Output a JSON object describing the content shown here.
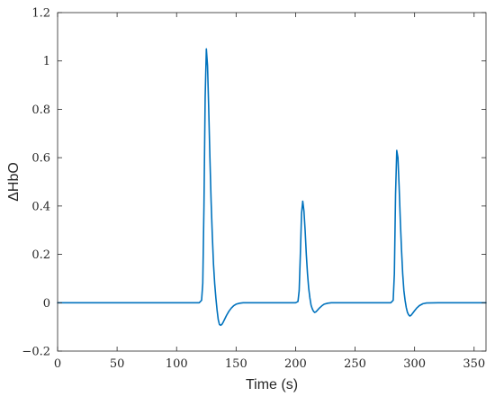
{
  "chart_data": {
    "type": "line",
    "title": "",
    "xlabel": "Time (s)",
    "ylabel": "ΔHbO",
    "xlim": [
      0,
      360
    ],
    "ylim": [
      -0.2,
      1.2
    ],
    "x_ticks": [
      0,
      50,
      100,
      150,
      200,
      250,
      300,
      350
    ],
    "x_tick_labels": [
      "0",
      "50",
      "100",
      "150",
      "200",
      "250",
      "300",
      "350"
    ],
    "y_ticks": [
      -0.2,
      0,
      0.2,
      0.4,
      0.6,
      0.8,
      1,
      1.2
    ],
    "y_tick_labels": [
      "−0.2",
      "0",
      "0.2",
      "0.4",
      "0.6",
      "0.8",
      "1",
      "1.2"
    ],
    "grid": false,
    "box": true,
    "series": [
      {
        "color": "#0072BD",
        "x": [
          0,
          100,
          119,
          121,
          122,
          123,
          124,
          125,
          126,
          127,
          128,
          129,
          130,
          131,
          132,
          133,
          134,
          135,
          136,
          137,
          138,
          139,
          140,
          142,
          144,
          146,
          148,
          150,
          153,
          156,
          160,
          200,
          202,
          203,
          204,
          205,
          206,
          207,
          208,
          209,
          210,
          211,
          212,
          213,
          214,
          215,
          216,
          217,
          218,
          220,
          222,
          224,
          227,
          230,
          240,
          280,
          282,
          283,
          284,
          285,
          286,
          287,
          288,
          289,
          290,
          291,
          292,
          293,
          294,
          295,
          296,
          297,
          298,
          300,
          302,
          304,
          307,
          310,
          320,
          360
        ],
        "y": [
          0,
          0,
          0,
          0.01,
          0.08,
          0.4,
          0.85,
          1.05,
          0.98,
          0.8,
          0.6,
          0.42,
          0.28,
          0.16,
          0.08,
          0.02,
          -0.03,
          -0.07,
          -0.09,
          -0.093,
          -0.09,
          -0.082,
          -0.072,
          -0.052,
          -0.035,
          -0.022,
          -0.012,
          -0.006,
          -0.002,
          0,
          0,
          0,
          0.005,
          0.05,
          0.2,
          0.37,
          0.42,
          0.38,
          0.3,
          0.2,
          0.12,
          0.06,
          0.02,
          -0.01,
          -0.025,
          -0.035,
          -0.04,
          -0.038,
          -0.033,
          -0.022,
          -0.013,
          -0.006,
          -0.002,
          0,
          0,
          0,
          0.01,
          0.12,
          0.45,
          0.63,
          0.6,
          0.48,
          0.34,
          0.22,
          0.12,
          0.05,
          0.01,
          -0.02,
          -0.04,
          -0.05,
          -0.055,
          -0.052,
          -0.046,
          -0.033,
          -0.021,
          -0.012,
          -0.004,
          -0.001,
          0,
          0
        ]
      }
    ]
  }
}
